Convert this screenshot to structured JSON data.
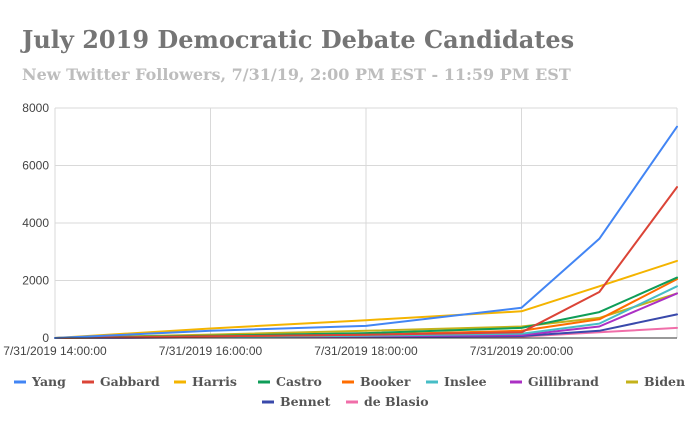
{
  "chart_data": {
    "type": "line",
    "title": "July 2019 Democratic Debate Candidates",
    "subtitle": "New Twitter Followers, 7/31/19, 2:00 PM EST - 11:59 PM EST",
    "xlabel": "",
    "ylabel": "",
    "ylim": [
      0,
      8000
    ],
    "yticks": [
      0,
      2000,
      4000,
      6000,
      8000
    ],
    "x": [
      0,
      2,
      4,
      6,
      7,
      8
    ],
    "xticks": [
      {
        "pos": 0,
        "label": "7/31/2019 14:00:00"
      },
      {
        "pos": 2,
        "label": "7/31/2019 16:00:00"
      },
      {
        "pos": 4,
        "label": "7/31/2019 18:00:00"
      },
      {
        "pos": 6,
        "label": "7/31/2019 20:00:00"
      }
    ],
    "grid": true,
    "legend_position": "bottom",
    "series": [
      {
        "name": "Yang",
        "color": "#4285f4",
        "values": [
          0,
          250,
          420,
          1050,
          3450,
          7350
        ]
      },
      {
        "name": "Gabbard",
        "color": "#db4437",
        "values": [
          0,
          60,
          110,
          200,
          1600,
          5250
        ]
      },
      {
        "name": "Harris",
        "color": "#f4b400",
        "values": [
          0,
          330,
          620,
          930,
          1800,
          2680
        ]
      },
      {
        "name": "Castro",
        "color": "#0f9d58",
        "values": [
          0,
          80,
          170,
          350,
          900,
          2100
        ]
      },
      {
        "name": "Booker",
        "color": "#ff6d00",
        "values": [
          0,
          60,
          120,
          250,
          650,
          2050
        ]
      },
      {
        "name": "Inslee",
        "color": "#46bdc6",
        "values": [
          0,
          40,
          80,
          150,
          500,
          1800
        ]
      },
      {
        "name": "Gillibrand",
        "color": "#ab30c4",
        "values": [
          0,
          30,
          60,
          100,
          400,
          1550
        ]
      },
      {
        "name": "Biden",
        "color": "#c4b21a",
        "values": [
          0,
          120,
          250,
          400,
          700,
          1550
        ]
      },
      {
        "name": "Bennet",
        "color": "#3949ab",
        "values": [
          0,
          20,
          40,
          70,
          250,
          820
        ]
      },
      {
        "name": "de Blasio",
        "color": "#f06ea9",
        "values": [
          0,
          20,
          30,
          50,
          200,
          350
        ]
      }
    ]
  }
}
